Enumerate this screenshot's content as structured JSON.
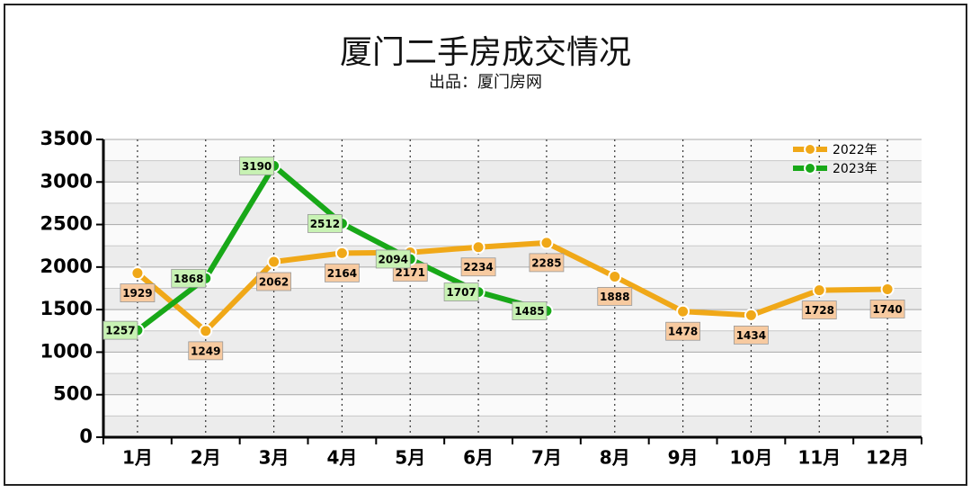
{
  "chart_data": {
    "type": "line",
    "title": "厦门二手房成交情况",
    "subtitle": "出品：厦门房网",
    "categories": [
      "1月",
      "2月",
      "3月",
      "4月",
      "5月",
      "6月",
      "7月",
      "8月",
      "9月",
      "10月",
      "11月",
      "12月"
    ],
    "series": [
      {
        "name": "2022年",
        "color": "#f0a818",
        "label_fill": "#f7caa0",
        "values": [
          1929,
          1249,
          2062,
          2164,
          2171,
          2234,
          2285,
          1888,
          1478,
          1434,
          1728,
          1740
        ]
      },
      {
        "name": "2023年",
        "color": "#18a818",
        "label_fill": "#c8f2b4",
        "values": [
          1257,
          1868,
          3190,
          2512,
          2094,
          1707,
          1485,
          null,
          null,
          null,
          null,
          null
        ]
      }
    ],
    "ylim": [
      0,
      3500
    ],
    "yticks": [
      0,
      500,
      1000,
      1500,
      2000,
      2500,
      3000,
      3500
    ],
    "grid": true,
    "legend": "top-right"
  }
}
